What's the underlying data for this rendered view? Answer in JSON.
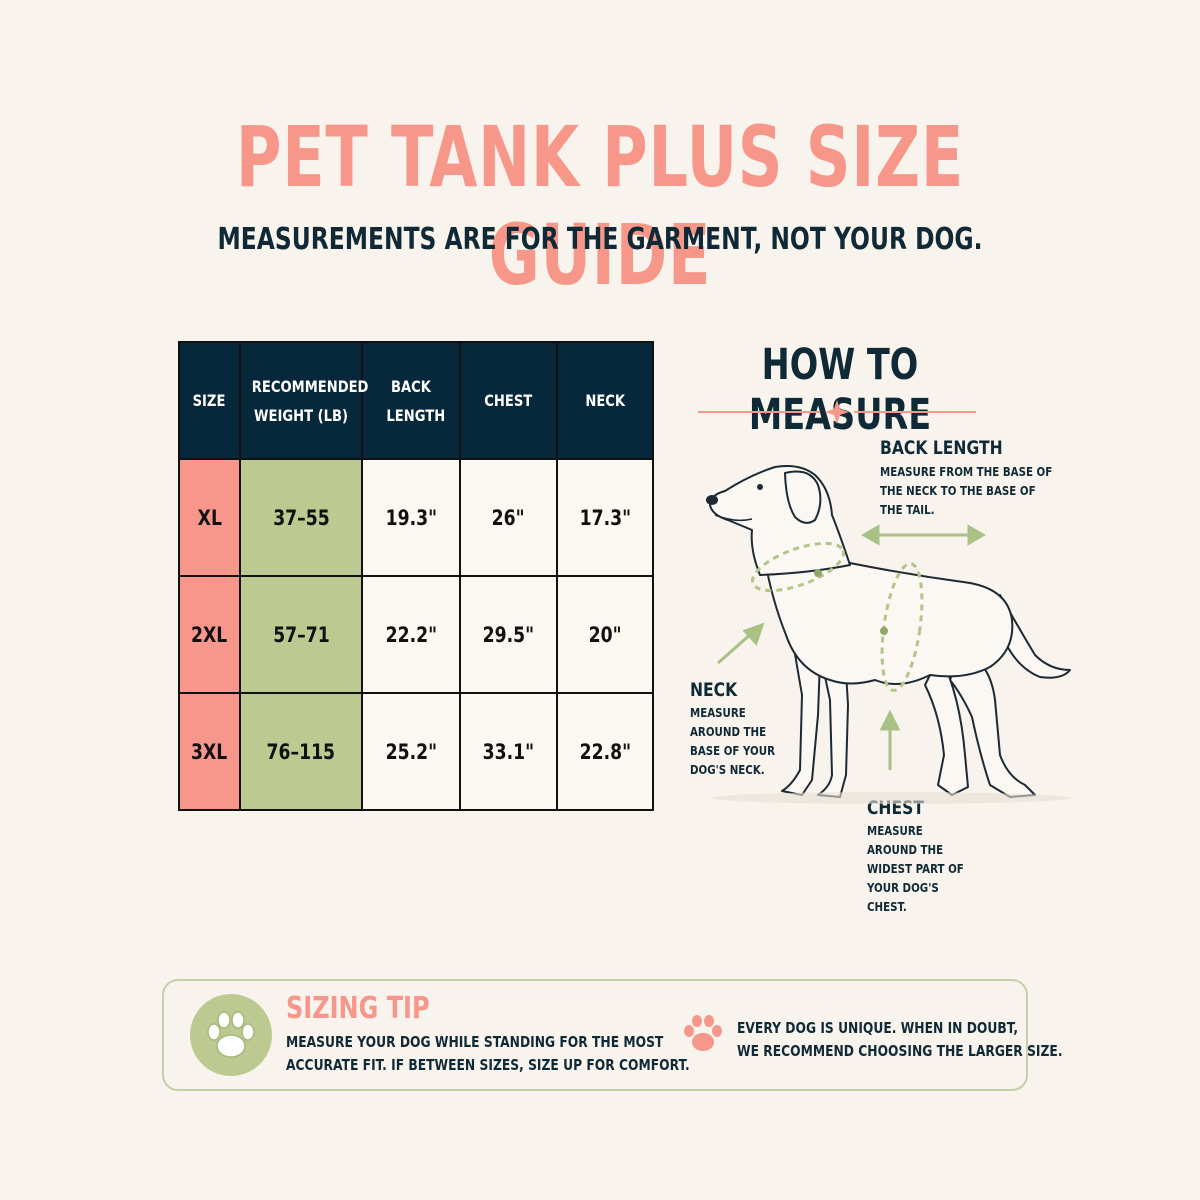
{
  "header": {
    "title": "PET TANK PLUS SIZE GUIDE",
    "subtitle": "MEASUREMENTS ARE FOR THE GARMENT, NOT YOUR DOG."
  },
  "table": {
    "headers": [
      "SIZE",
      "RECOMMENDED WEIGHT (LB)",
      "BACK LENGTH",
      "CHEST",
      "NECK"
    ],
    "rows": [
      {
        "size": "XL",
        "weight": "37–55",
        "back_length": "19.3\"",
        "chest": "26\"",
        "neck": "17.3\""
      },
      {
        "size": "2XL",
        "weight": "57–71",
        "back_length": "22.2\"",
        "chest": "29.5\"",
        "neck": "20\""
      },
      {
        "size": "3XL",
        "weight": "76–115",
        "back_length": "25.2\"",
        "chest": "33.1\"",
        "neck": "22.8\""
      }
    ]
  },
  "how_to_measure": {
    "title": "HOW TO MEASURE",
    "back_length": {
      "title": "BACK LENGTH",
      "description": "MEASURE FROM THE BASE OF THE NECK TO THE BASE OF THE TAIL."
    },
    "neck": {
      "title": "NECK",
      "description": "MEASURE AROUND THE BASE OF YOUR DOG'S NECK."
    },
    "chest": {
      "title": "CHEST",
      "description": "MEASURE AROUND THE WIDEST PART OF YOUR DOG'S CHEST."
    }
  },
  "tip": {
    "title": "SIZING TIP",
    "text_line1": "MEASURE YOUR DOG WHILE STANDING FOR THE MOST",
    "text_line2": "ACCURATE FIT. IF BETWEEN SIZES, SIZE UP FOR COMFORT.",
    "note_line1": "EVERY DOG IS UNIQUE. WHEN IN DOUBT,",
    "note_line2": "WE RECOMMEND CHOOSING THE LARGER SIZE."
  },
  "colors": {
    "coral": "#f7968b",
    "navy": "#06283a",
    "sage": "#bcca92",
    "background": "#f8f3ec"
  }
}
